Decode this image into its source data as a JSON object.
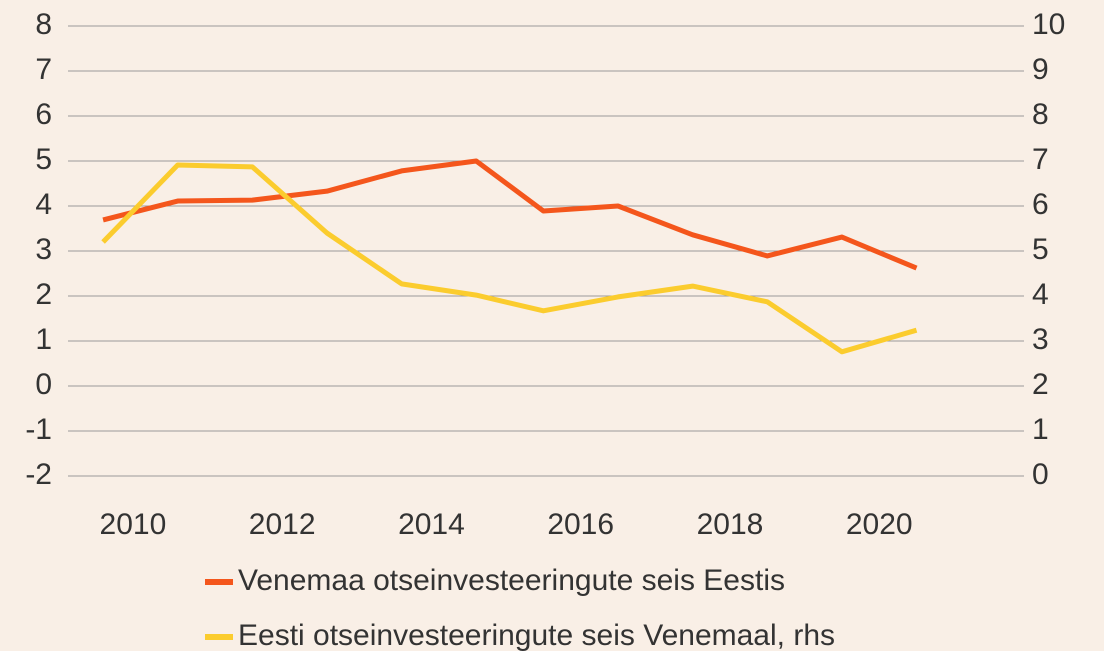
{
  "chart_data": {
    "type": "line",
    "x": [
      2009.6,
      2010.6,
      2011.6,
      2012.6,
      2013.6,
      2014.6,
      2015.5,
      2016.5,
      2017.5,
      2018.5,
      2019.5,
      2020.5
    ],
    "series": [
      {
        "name": "Venemaa otseinvesteeringute seis Eestis",
        "color": "#f4561c",
        "values": [
          3.69,
          4.11,
          4.13,
          4.33,
          4.78,
          5.0,
          3.89,
          4.0,
          3.36,
          2.89,
          3.31,
          2.62
        ]
      },
      {
        "name": "Eesti otseinvesteeringute seis Venemaal, rhs",
        "color": "#fbcc2e",
        "axis": "y2",
        "values": [
          5.2,
          6.91,
          6.87,
          5.4,
          4.27,
          4.02,
          3.67,
          3.98,
          4.22,
          3.87,
          2.76,
          3.24
        ]
      }
    ],
    "xlim": [
      2009.13,
      2021.94
    ],
    "xticks": [
      2010,
      2012,
      2014,
      2016,
      2018,
      2020
    ],
    "ylim": [
      -2,
      8
    ],
    "yticks": [
      -2,
      -1,
      0,
      1,
      2,
      3,
      4,
      5,
      6,
      7,
      8
    ],
    "y2lim": [
      0,
      10
    ],
    "y2ticks": [
      0,
      1,
      2,
      3,
      4,
      5,
      6,
      7,
      8,
      9,
      10
    ],
    "grid": true,
    "legend": "bottom"
  }
}
